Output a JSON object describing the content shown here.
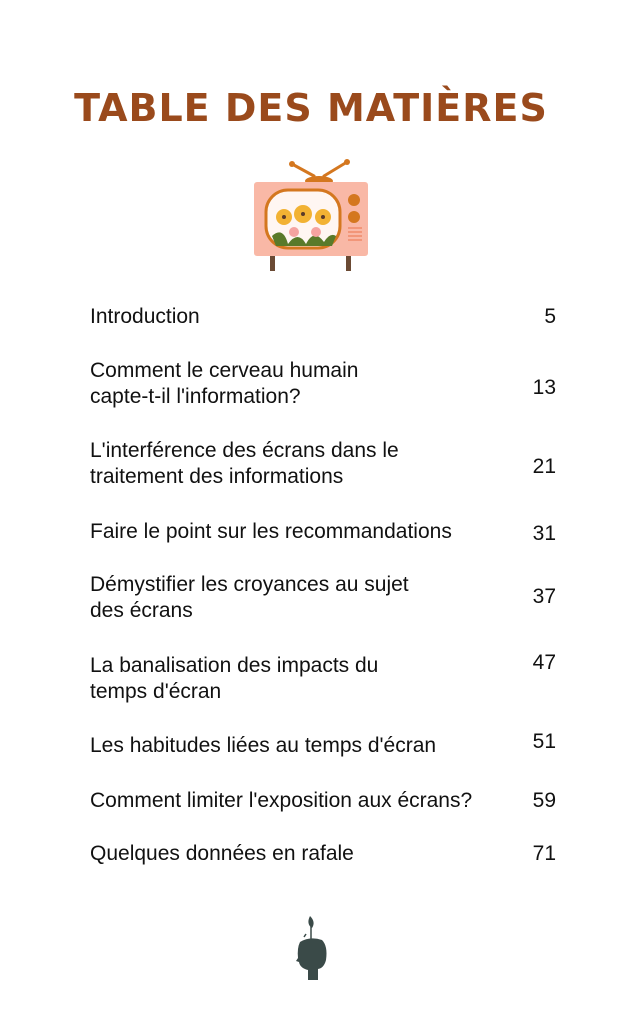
{
  "title": "TABLE DES MATIÈRES",
  "colors": {
    "title": "#9a4a1c",
    "tv_body": "#f9b8a6",
    "tv_frame": "#d4771f",
    "head_icon": "#3a4a48"
  },
  "entries": [
    {
      "title": "Introduction",
      "page": "5"
    },
    {
      "title": "Comment le cerveau humain capte-t-il l'information?",
      "page": "13"
    },
    {
      "title": "L'interférence des écrans dans le traitement des informations",
      "page": "21"
    },
    {
      "title": "Faire le point sur les recommandations",
      "page": "31"
    },
    {
      "title": "Démystifier les croyances au sujet des écrans",
      "page": "37"
    },
    {
      "title": "La banalisation des impacts du temps d'écran",
      "page": "47"
    },
    {
      "title": "Les habitudes liées au temps d'écran",
      "page": "51"
    },
    {
      "title": "Comment limiter l'exposition aux écrans?",
      "page": "59"
    },
    {
      "title": "Quelques données en rafale",
      "page": "71"
    }
  ]
}
